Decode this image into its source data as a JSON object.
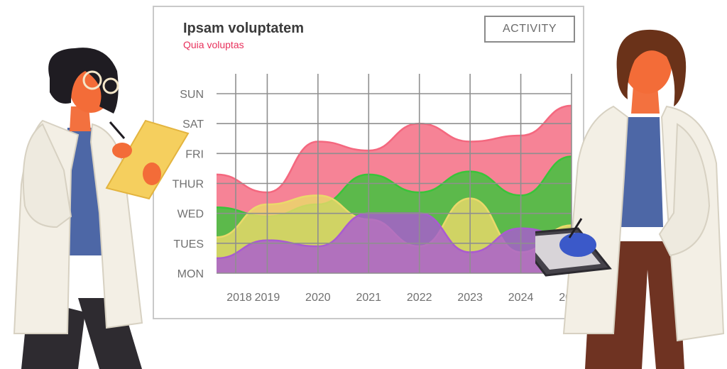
{
  "header": {
    "title": "Ipsam voluptatem",
    "subtitle": "Quia voluptas",
    "button_label": "ACTIVITY"
  },
  "colors": {
    "pink": "#f4687f",
    "green": "#39c43a",
    "yellow": "#ead96a",
    "purple": "#a95bd1",
    "grid": "#8f8f8f",
    "title": "#3b3b3b",
    "subtitle": "#e8315c"
  },
  "chart_data": {
    "type": "area",
    "categories": [
      "2018",
      "2019",
      "2020",
      "2021",
      "2022",
      "2023",
      "2024",
      "2025"
    ],
    "y_categories": [
      "MON",
      "TUES",
      "WED",
      "THUR",
      "FRI",
      "SAT",
      "SUN"
    ],
    "ylim": [
      0,
      6
    ],
    "grid": true,
    "series": [
      {
        "color": "#f4687f",
        "values": [
          3.3,
          2.7,
          4.4,
          4.1,
          5.0,
          4.4,
          4.6,
          5.6
        ]
      },
      {
        "color": "#39c43a",
        "values": [
          2.2,
          1.9,
          2.3,
          3.3,
          2.7,
          3.4,
          2.6,
          3.9
        ]
      },
      {
        "color": "#ead96a",
        "values": [
          1.2,
          2.3,
          2.6,
          1.8,
          0.9,
          2.5,
          0.7,
          1.6
        ]
      },
      {
        "color": "#a95bd1",
        "values": [
          0.5,
          1.1,
          0.9,
          2.0,
          2.0,
          0.7,
          1.5,
          1.2
        ]
      }
    ]
  }
}
